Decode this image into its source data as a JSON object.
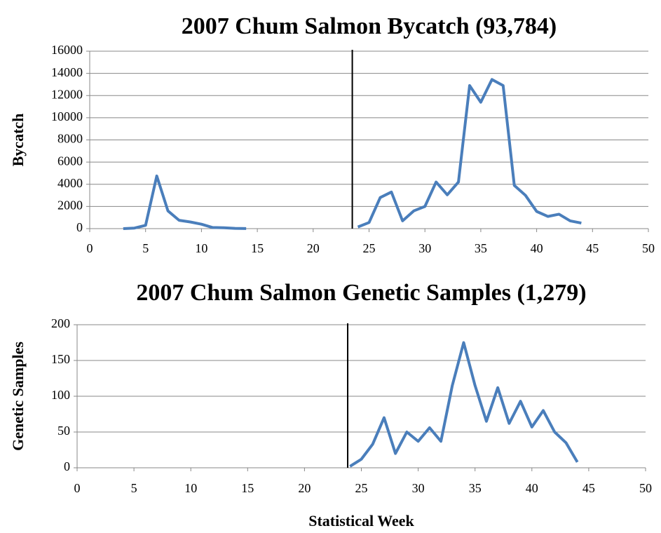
{
  "chart_data": [
    {
      "type": "line",
      "title": "2007 Chum Salmon Bycatch (93,784)",
      "ylabel": "Bycatch",
      "x": [
        3,
        4,
        5,
        6,
        7,
        8,
        9,
        10,
        11,
        12,
        13,
        14,
        15,
        16,
        17,
        18,
        19,
        20,
        21,
        22,
        23,
        24,
        25,
        26,
        27,
        28,
        29,
        30,
        31,
        32,
        33,
        34,
        35,
        36,
        37,
        38,
        39,
        40,
        41,
        42,
        43,
        44
      ],
      "values": [
        0,
        50,
        300,
        4750,
        1600,
        750,
        600,
        400,
        100,
        80,
        20,
        10,
        null,
        null,
        null,
        null,
        null,
        null,
        null,
        null,
        null,
        150,
        550,
        2800,
        3300,
        700,
        1600,
        2000,
        4200,
        3050,
        4200,
        12900,
        11400,
        13450,
        12900,
        3900,
        3000,
        1550,
        1100,
        1300,
        700,
        500
      ],
      "color": "#4a7ebb",
      "xlim": [
        0,
        50
      ],
      "xticks": [
        0,
        5,
        10,
        15,
        20,
        25,
        30,
        35,
        40,
        45,
        50
      ],
      "ylim": [
        0,
        16000
      ],
      "yticks": [
        0,
        2000,
        4000,
        6000,
        8000,
        10000,
        12000,
        14000,
        16000
      ],
      "grid": true,
      "vline": 23.5
    },
    {
      "type": "line",
      "title": "2007 Chum Salmon Genetic Samples (1,279)",
      "ylabel": "Genetic Samples",
      "xlabel": "Statistical Week",
      "x": [
        24,
        25,
        26,
        27,
        28,
        29,
        30,
        31,
        32,
        33,
        34,
        35,
        36,
        37,
        38,
        39,
        40,
        41,
        42,
        43,
        44
      ],
      "values": [
        2,
        12,
        33,
        70,
        20,
        50,
        37,
        56,
        37,
        115,
        175,
        115,
        65,
        112,
        62,
        93,
        57,
        80,
        50,
        35,
        8
      ],
      "color": "#4a7ebb",
      "xlim": [
        0,
        50
      ],
      "xticks": [
        0,
        5,
        10,
        15,
        20,
        25,
        30,
        35,
        40,
        45,
        50
      ],
      "ylim": [
        0,
        200
      ],
      "yticks": [
        0,
        50,
        100,
        150,
        200
      ],
      "grid": true,
      "vline": 23.8
    }
  ]
}
